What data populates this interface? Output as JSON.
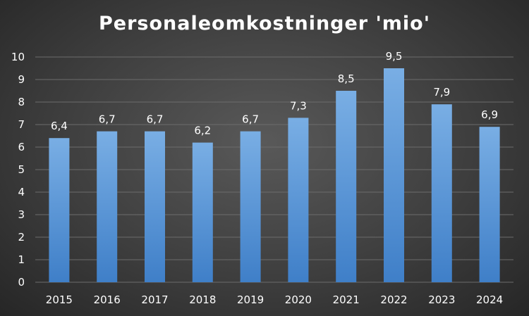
{
  "chart_data": {
    "type": "bar",
    "title": "Personaleomkostninger 'mio'",
    "xlabel": "",
    "ylabel": "",
    "categories": [
      "2015",
      "2016",
      "2017",
      "2018",
      "2019",
      "2020",
      "2021",
      "2022",
      "2023",
      "2024"
    ],
    "values": [
      6.4,
      6.7,
      6.7,
      6.2,
      6.7,
      7.3,
      8.5,
      9.5,
      7.9,
      6.9
    ],
    "data_labels": [
      "6,4",
      "6,7",
      "6,7",
      "6,2",
      "6,7",
      "7,3",
      "8,5",
      "9,5",
      "7,9",
      "6,9"
    ],
    "ylim": [
      0,
      10
    ],
    "yticks": [
      0,
      1,
      2,
      3,
      4,
      5,
      6,
      7,
      8,
      9,
      10
    ],
    "grid": true,
    "legend": "none",
    "colors": {
      "bar_top": "#79aee4",
      "bar_bottom": "#3f7fc8",
      "grid": "#6c6c6c",
      "text": "#ffffff"
    }
  }
}
